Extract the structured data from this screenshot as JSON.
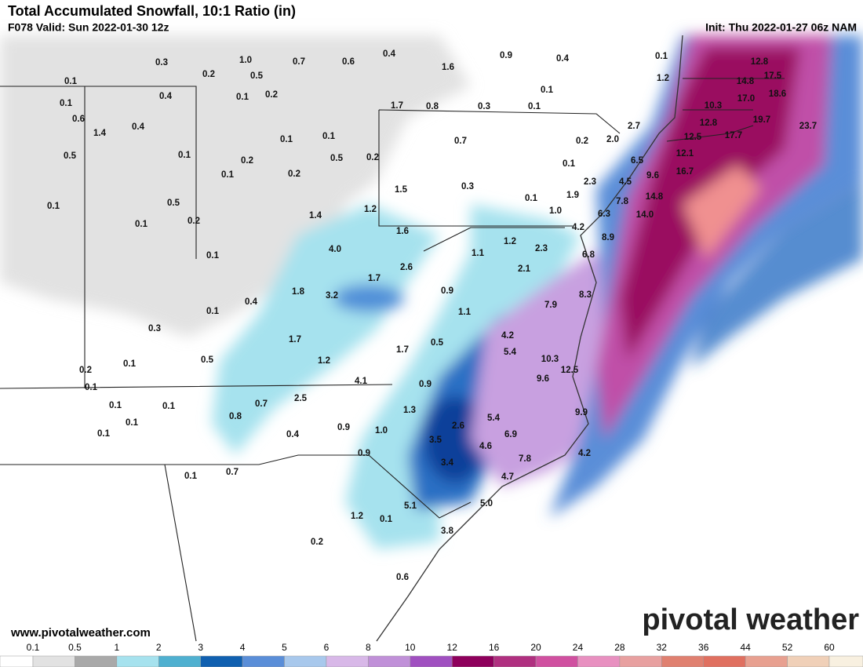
{
  "header": {
    "title": "Total Accumulated Snowfall, 10:1 Ratio (in)",
    "valid": "F078 Valid: Sun 2022-01-30 12z",
    "init": "Init: Thu 2022-01-27 06z NAM"
  },
  "map": {
    "labels": [
      "0.3",
      "1.0",
      "0.7",
      "0.6",
      "0.4",
      "0.9",
      "0.4",
      "0.1",
      "12.8",
      "0.5",
      "0.2",
      "1.6",
      "1.2",
      "14.8",
      "17.5",
      "0.1",
      "0.4",
      "0.1",
      "0.2",
      "0.1",
      "17.0",
      "18.6",
      "0.1",
      "1.7",
      "0.8",
      "0.3",
      "0.1",
      "10.3",
      "0.6",
      "0.4",
      "1.4",
      "19.7",
      "12.8",
      "23.7",
      "2.7",
      "0.1",
      "0.1",
      "0.7",
      "0.2",
      "12.5",
      "17.7",
      "2.0",
      "12.1",
      "0.5",
      "0.1",
      "0.2",
      "0.5",
      "0.2",
      "6.5",
      "0.1",
      "0.2",
      "0.1",
      "16.7",
      "9.6",
      "2.3",
      "4.5",
      "1.5",
      "0.3",
      "1.9",
      "14.8",
      "0.1",
      "1.0",
      "6.3",
      "7.8",
      "14.0",
      "0.1",
      "0.5",
      "0.2",
      "0.1",
      "1.4",
      "1.2",
      "1.6",
      "4.2",
      "8.9",
      "1.2",
      "2.3",
      "1.1",
      "6.8",
      "4.0",
      "0.1",
      "2.6",
      "2.1",
      "1.7",
      "1.8",
      "3.2",
      "0.9",
      "8.3",
      "0.4",
      "7.9",
      "0.1",
      "1.1",
      "0.3",
      "1.7",
      "4.2",
      "0.5",
      "5.4",
      "1.7",
      "10.3",
      "1.2",
      "0.5",
      "0.1",
      "0.2",
      "12.5",
      "4.1",
      "9.6",
      "0.9",
      "0.1",
      "2.5",
      "0.7",
      "0.1",
      "0.1",
      "1.3",
      "9.9",
      "0.8",
      "5.4",
      "0.1",
      "2.6",
      "0.9",
      "1.0",
      "0.1",
      "0.4",
      "6.9",
      "3.5",
      "4.6",
      "0.9",
      "4.2",
      "7.8",
      "3.4",
      "0.1",
      "0.7",
      "4.7",
      "5.0",
      "5.1",
      "1.2",
      "0.1",
      "3.8",
      "0.2",
      "0.6"
    ]
  },
  "footer": {
    "website": "www.pivotalweather.com",
    "brand": "pivotal weather"
  },
  "colorbar": {
    "labels": [
      "0.1",
      "0.5",
      "1",
      "2",
      "3",
      "4",
      "5",
      "6",
      "8",
      "10",
      "12",
      "16",
      "20",
      "24",
      "28",
      "32",
      "36",
      "44",
      "52",
      "60"
    ],
    "colors": [
      "#ffffff",
      "#e2e2e2",
      "#a9a9a9",
      "#a6e2ee",
      "#4fb0d0",
      "#1060b0",
      "#5a8ed8",
      "#a8c8ec",
      "#d8b8e8",
      "#c090d8",
      "#a050c0",
      "#8e005c",
      "#b03080",
      "#d050a0",
      "#e890c0",
      "#e8a0a0",
      "#e08070",
      "#e07060",
      "#e8a090",
      "#f0d0b8",
      "#f8f0e0"
    ]
  }
}
